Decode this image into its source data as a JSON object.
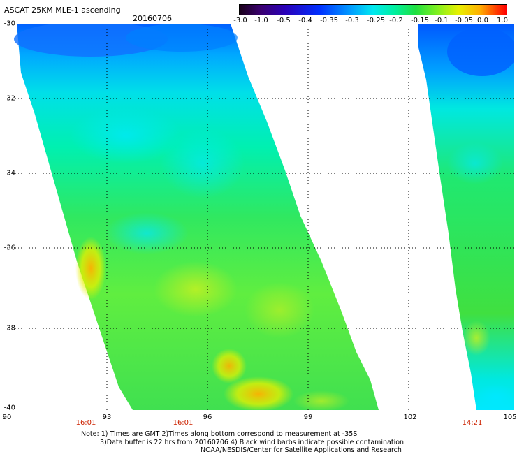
{
  "header": {
    "title": "ASCAT 25KM MLE-1 ascending",
    "date": "20160706"
  },
  "colorbar": {
    "labels": [
      "-3.0",
      "-1.0",
      "-0.5",
      "-0.4",
      "-0.35",
      "-0.3",
      "-0.25",
      "-0.2",
      "-0.15",
      "-0.1",
      "-0.05",
      "0.0",
      "1.0"
    ]
  },
  "axes": {
    "y_ticks": [
      "-30",
      "-32",
      "-34",
      "-36",
      "-38",
      "-40"
    ],
    "x_ticks": [
      "90",
      "93",
      "96",
      "99",
      "102",
      "105"
    ]
  },
  "times": [
    "16:01",
    "16:01",
    "14:21"
  ],
  "notes": {
    "line1": "Note: 1) Times are GMT 2)Times along bottom correspond to measurement at -35S",
    "line2": "3)Data buffer is 22 hrs from 20160706 4) Black wind barbs indicate possible contamination",
    "line3": "NOAA/NESDIS/Center for Satellite Applications and Research"
  },
  "colors": {
    "low": "#0050ff",
    "mid": "#00f0c0",
    "high": "#ffb000"
  }
}
